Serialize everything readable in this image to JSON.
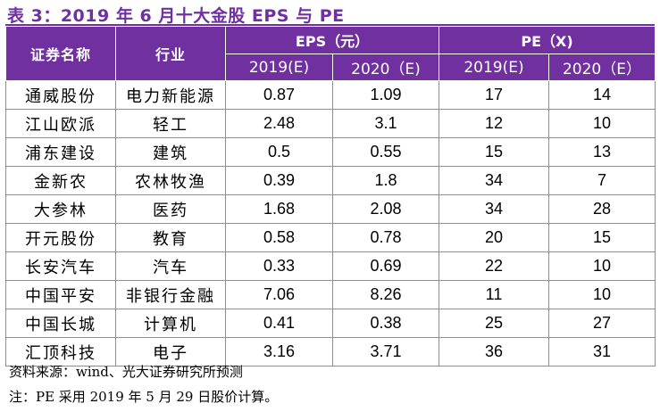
{
  "title": "表 3：2019 年 6 月十大金股 EPS 与 PE",
  "colors": {
    "accent": "#7030a0",
    "header_text": "#ffffff",
    "border": "#8e8e8e"
  },
  "table": {
    "headers": {
      "stock_name": "证券名称",
      "industry": "行业",
      "eps_group": "EPS（元）",
      "pe_group": "PE（X)",
      "eps_2019": "2019(E)",
      "eps_2020": "2020（E)",
      "pe_2019": "2019(E)",
      "pe_2020": "2020（E）"
    },
    "rows": [
      {
        "name": "通威股份",
        "industry": "电力新能源",
        "eps2019": "0.87",
        "eps2020": "1.09",
        "pe2019": "17",
        "pe2020": "14"
      },
      {
        "name": "江山欧派",
        "industry": "轻工",
        "eps2019": "2.48",
        "eps2020": "3.1",
        "pe2019": "12",
        "pe2020": "10"
      },
      {
        "name": "浦东建设",
        "industry": "建筑",
        "eps2019": "0.5",
        "eps2020": "0.55",
        "pe2019": "15",
        "pe2020": "13"
      },
      {
        "name": "金新农",
        "industry": "农林牧渔",
        "eps2019": "0.39",
        "eps2020": "1.8",
        "pe2019": "34",
        "pe2020": "7"
      },
      {
        "name": "大参林",
        "industry": "医药",
        "eps2019": "1.68",
        "eps2020": "2.08",
        "pe2019": "34",
        "pe2020": "28"
      },
      {
        "name": "开元股份",
        "industry": "教育",
        "eps2019": "0.58",
        "eps2020": "0.78",
        "pe2019": "20",
        "pe2020": "15"
      },
      {
        "name": "长安汽车",
        "industry": "汽车",
        "eps2019": "0.33",
        "eps2020": "0.69",
        "pe2019": "22",
        "pe2020": "10"
      },
      {
        "name": "中国平安",
        "industry": "非银行金融",
        "eps2019": "7.06",
        "eps2020": "8.26",
        "pe2019": "11",
        "pe2020": "10"
      },
      {
        "name": "中国长城",
        "industry": "计算机",
        "eps2019": "0.41",
        "eps2020": "0.38",
        "pe2019": "25",
        "pe2020": "27"
      },
      {
        "name": "汇顶科技",
        "industry": "电子",
        "eps2019": "3.16",
        "eps2020": "3.71",
        "pe2019": "36",
        "pe2020": "31"
      }
    ]
  },
  "notes": {
    "source": "资料来源：wind、光大证券研究所预测",
    "note": "注：PE 采用 2019 年 5 月 29 日股价计算。"
  }
}
